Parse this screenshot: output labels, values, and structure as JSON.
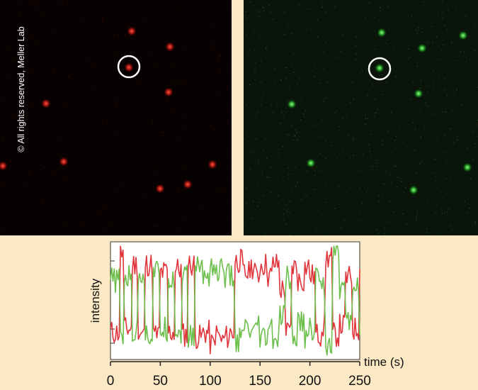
{
  "copyright": "© All rights reserved, Meller Lab",
  "colors": {
    "background": "#fbe8c4",
    "red_channel": "#e0343a",
    "green_channel": "#6cbf4b"
  },
  "images": {
    "red_channel": {
      "spots": [
        [
          186,
          44
        ],
        [
          240,
          66
        ],
        [
          182,
          95
        ],
        [
          238,
          130
        ],
        [
          65,
          146
        ],
        [
          90,
          228
        ],
        [
          300,
          232
        ],
        [
          4,
          234
        ],
        [
          226,
          266
        ],
        [
          265,
          260
        ]
      ],
      "marked_spot": [
        182,
        94
      ]
    },
    "green_channel": {
      "spots": [
        [
          195,
          46
        ],
        [
          252,
          68
        ],
        [
          310,
          50
        ],
        [
          192,
          96
        ],
        [
          247,
          132
        ],
        [
          68,
          147
        ],
        [
          95,
          230
        ],
        [
          316,
          236
        ],
        [
          240,
          268
        ]
      ],
      "marked_spot": [
        192,
        97
      ]
    }
  },
  "chart_data": {
    "type": "line",
    "ylabel": "intensity",
    "xlabel": "time (s)",
    "xlim": [
      0,
      250
    ],
    "ylim": [
      0,
      100
    ],
    "xticks": [
      "0",
      "50",
      "100",
      "150",
      "200",
      "250"
    ],
    "series": [
      {
        "color": "#e0343a",
        "segments": [
          [
            0,
            22
          ],
          [
            10,
            92
          ],
          [
            14,
            25
          ],
          [
            22,
            82
          ],
          [
            28,
            20
          ],
          [
            35,
            82
          ],
          [
            43,
            20
          ],
          [
            50,
            75
          ],
          [
            58,
            22
          ],
          [
            65,
            78
          ],
          [
            72,
            20
          ],
          [
            78,
            82
          ],
          [
            85,
            18
          ],
          [
            93,
            22
          ],
          [
            100,
            12
          ],
          [
            105,
            20
          ],
          [
            110,
            15
          ],
          [
            115,
            18
          ],
          [
            120,
            22
          ],
          [
            125,
            85
          ],
          [
            133,
            74
          ],
          [
            140,
            80
          ],
          [
            146,
            70
          ],
          [
            150,
            82
          ],
          [
            158,
            72
          ],
          [
            163,
            82
          ],
          [
            170,
            60
          ],
          [
            176,
            22
          ],
          [
            182,
            80
          ],
          [
            188,
            68
          ],
          [
            195,
            80
          ],
          [
            200,
            72
          ],
          [
            206,
            20
          ],
          [
            212,
            28
          ],
          [
            216,
            88
          ],
          [
            223,
            20
          ],
          [
            230,
            28
          ],
          [
            236,
            70
          ],
          [
            243,
            25
          ],
          [
            250,
            78
          ]
        ]
      },
      {
        "color": "#6cbf4b",
        "segments": [
          [
            0,
            68
          ],
          [
            10,
            18
          ],
          [
            14,
            70
          ],
          [
            22,
            22
          ],
          [
            28,
            75
          ],
          [
            35,
            20
          ],
          [
            43,
            75
          ],
          [
            50,
            25
          ],
          [
            58,
            70
          ],
          [
            65,
            22
          ],
          [
            72,
            72
          ],
          [
            78,
            18
          ],
          [
            85,
            80
          ],
          [
            93,
            72
          ],
          [
            100,
            82
          ],
          [
            105,
            74
          ],
          [
            110,
            78
          ],
          [
            115,
            72
          ],
          [
            120,
            70
          ],
          [
            125,
            15
          ],
          [
            133,
            25
          ],
          [
            140,
            18
          ],
          [
            146,
            28
          ],
          [
            150,
            16
          ],
          [
            158,
            25
          ],
          [
            163,
            15
          ],
          [
            170,
            35
          ],
          [
            176,
            70
          ],
          [
            182,
            18
          ],
          [
            188,
            30
          ],
          [
            195,
            18
          ],
          [
            200,
            25
          ],
          [
            206,
            72
          ],
          [
            212,
            62
          ],
          [
            216,
            12
          ],
          [
            223,
            96
          ],
          [
            230,
            62
          ],
          [
            236,
            30
          ],
          [
            243,
            65
          ],
          [
            250,
            20
          ]
        ]
      }
    ]
  }
}
